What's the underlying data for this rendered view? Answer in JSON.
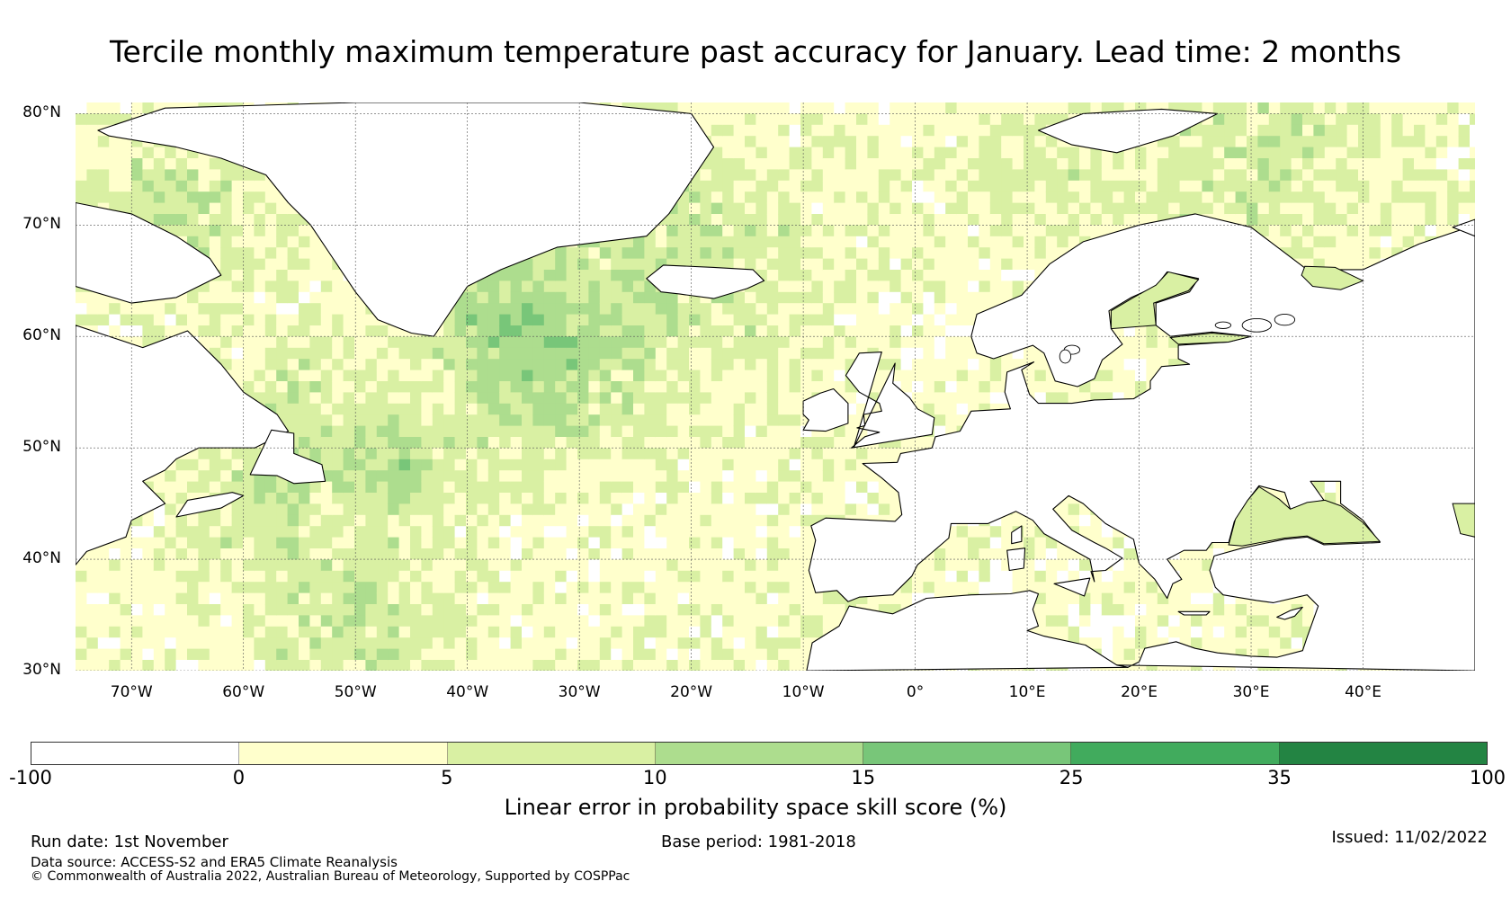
{
  "title": "Tercile monthly maximum temperature past accuracy for January. Lead time: 2 months",
  "map": {
    "lat_labels": [
      "80°N",
      "70°N",
      "60°N",
      "50°N",
      "40°N",
      "30°N"
    ],
    "lon_labels": [
      "70°W",
      "60°W",
      "50°W",
      "40°W",
      "30°W",
      "20°W",
      "10°W",
      "0°",
      "10°E",
      "20°E",
      "30°E",
      "40°E"
    ],
    "extent": {
      "lon_min": -75,
      "lon_max": 50,
      "lat_min": 30,
      "lat_max": 81
    },
    "grid_lons": [
      -70,
      -60,
      -50,
      -40,
      -30,
      -20,
      -10,
      0,
      10,
      20,
      30,
      40
    ],
    "grid_lats": [
      80,
      70,
      60,
      50,
      40,
      30
    ],
    "land_color": "#ffffff",
    "coast_color": "#000000"
  },
  "colorbar": {
    "colors": [
      "#ffffff",
      "#ffffcc",
      "#d9f0a3",
      "#addd8e",
      "#78c679",
      "#41ab5d",
      "#238443"
    ],
    "ticks": [
      "-100",
      "0",
      "5",
      "10",
      "15",
      "25",
      "35",
      "100"
    ],
    "label": "Linear error in probability space skill score (%)"
  },
  "footer": {
    "run_date": "Run date: 1st November",
    "base_period": "Base period: 1981-2018",
    "issued": "Issued: 11/02/2022",
    "data_source": "Data source: ACCESS-S2 and ERA5 Climate Reanalysis",
    "copyright": "© Commonwealth of Australia 2022, Australian Bureau of Meteorology, Supported by COSPPac"
  }
}
